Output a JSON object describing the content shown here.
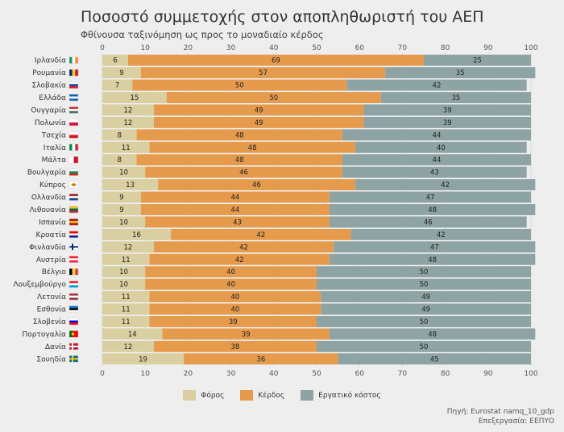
{
  "title": "Ποσοστό συμμετοχής στον αποπληθωριστή του ΑΕΠ",
  "subtitle": "Φθίνουσα ταξινόμηση ως προς το μοναδιαίο κέρδος",
  "source": {
    "line1": "Πηγή: Eurostat namq_10_gdp",
    "line2": "Επεξεργασία: ΕΕΠΥΟ"
  },
  "colors": {
    "tax": "#d9cfa0",
    "profit": "#e69b4c",
    "labour": "#8ea3a3"
  },
  "flag_icons": [
    {
      "country": "Ιρλανδία",
      "icon": "flag-ireland-icon",
      "colors": [
        "#169b62",
        "#ffffff",
        "#ff883e"
      ],
      "layout": "vertical"
    },
    {
      "country": "Ρουμανία",
      "icon": "flag-romania-icon",
      "colors": [
        "#002b7f",
        "#fcd116",
        "#ce1126"
      ],
      "layout": "vertical"
    },
    {
      "country": "Σλοβακία",
      "icon": "flag-slovakia-icon",
      "colors": [
        "#ffffff",
        "#0b4ea2",
        "#ee1c25"
      ],
      "layout": "horizontal"
    },
    {
      "country": "Ελλάδα",
      "icon": "flag-greece-icon",
      "colors": [
        "#0d5eaf",
        "#ffffff",
        "#0d5eaf"
      ],
      "layout": "horizontal"
    },
    {
      "country": "Ουγγαρία",
      "icon": "flag-hungary-icon",
      "colors": [
        "#ce2939",
        "#ffffff",
        "#477050"
      ],
      "layout": "horizontal"
    },
    {
      "country": "Πολωνία",
      "icon": "flag-poland-icon",
      "colors": [
        "#ffffff",
        "#dc143c"
      ],
      "layout": "horizontal"
    },
    {
      "country": "Τσεχία",
      "icon": "flag-czechia-icon",
      "colors": [
        "#ffffff",
        "#d7141a"
      ],
      "layout": "horizontal"
    },
    {
      "country": "Ιταλία",
      "icon": "flag-italy-icon",
      "colors": [
        "#009246",
        "#ffffff",
        "#ce2b37"
      ],
      "layout": "vertical"
    },
    {
      "country": "Μάλτα",
      "icon": "flag-malta-icon",
      "colors": [
        "#ffffff",
        "#cf142b"
      ],
      "layout": "vertical"
    },
    {
      "country": "Βουλγαρία",
      "icon": "flag-bulgaria-icon",
      "colors": [
        "#ffffff",
        "#00966e",
        "#d62612"
      ],
      "layout": "horizontal"
    },
    {
      "country": "Κύπρος",
      "icon": "flag-cyprus-icon",
      "colors": [
        "#ffffff",
        "#d57800"
      ],
      "layout": "emblem"
    },
    {
      "country": "Ολλανδία",
      "icon": "flag-netherlands-icon",
      "colors": [
        "#ae1c28",
        "#ffffff",
        "#21468b"
      ],
      "layout": "horizontal"
    },
    {
      "country": "Λιθουανία",
      "icon": "flag-lithuania-icon",
      "colors": [
        "#fdb913",
        "#006a44",
        "#c1272d"
      ],
      "layout": "horizontal"
    },
    {
      "country": "Ισπανία",
      "icon": "flag-spain-icon",
      "colors": [
        "#aa151b",
        "#f1bf00",
        "#aa151b"
      ],
      "layout": "horizontal"
    },
    {
      "country": "Κροατία",
      "icon": "flag-croatia-icon",
      "colors": [
        "#ff0000",
        "#ffffff",
        "#171796"
      ],
      "layout": "horizontal"
    },
    {
      "country": "Φινλανδία",
      "icon": "flag-finland-icon",
      "colors": [
        "#ffffff",
        "#002f6c"
      ],
      "layout": "cross"
    },
    {
      "country": "Αυστρία",
      "icon": "flag-austria-icon",
      "colors": [
        "#ed2939",
        "#ffffff",
        "#ed2939"
      ],
      "layout": "horizontal"
    },
    {
      "country": "Βέλγιο",
      "icon": "flag-belgium-icon",
      "colors": [
        "#000000",
        "#fdda24",
        "#ef3340"
      ],
      "layout": "vertical"
    },
    {
      "country": "Λουξεμβούργο",
      "icon": "flag-luxembourg-icon",
      "colors": [
        "#ed2939",
        "#ffffff",
        "#00a1de"
      ],
      "layout": "horizontal"
    },
    {
      "country": "Λετονία",
      "icon": "flag-latvia-icon",
      "colors": [
        "#9e3039",
        "#ffffff",
        "#9e3039"
      ],
      "layout": "horizontal"
    },
    {
      "country": "Εσθονία",
      "icon": "flag-estonia-icon",
      "colors": [
        "#0072ce",
        "#000000",
        "#ffffff"
      ],
      "layout": "horizontal"
    },
    {
      "country": "Σλοβενία",
      "icon": "flag-slovenia-icon",
      "colors": [
        "#ffffff",
        "#0000ff",
        "#ff0000"
      ],
      "layout": "horizontal"
    },
    {
      "country": "Πορτογαλία",
      "icon": "flag-portugal-icon",
      "colors": [
        "#006600",
        "#ff0000"
      ],
      "layout": "portugal"
    },
    {
      "country": "Δανία",
      "icon": "flag-denmark-icon",
      "colors": [
        "#c8102e",
        "#ffffff"
      ],
      "layout": "cross"
    },
    {
      "country": "Σουηδία",
      "icon": "flag-sweden-icon",
      "colors": [
        "#006aa7",
        "#fecc00"
      ],
      "layout": "cross"
    }
  ],
  "chart_data": {
    "type": "bar",
    "orientation": "horizontal",
    "stacked": true,
    "title": "Ποσοστό συμμετοχής στον αποπληθωριστή του ΑΕΠ",
    "subtitle": "Φθίνουσα ταξινόμηση ως προς το μοναδιαίο κέρδος",
    "xlim": [
      0,
      100
    ],
    "xticks": [
      0,
      10,
      20,
      30,
      40,
      50,
      60,
      70,
      80,
      90,
      100
    ],
    "grid": true,
    "legend_position": "bottom",
    "categories": [
      "Ιρλανδία",
      "Ρουμανία",
      "Σλοβακία",
      "Ελλάδα",
      "Ουγγαρία",
      "Πολωνία",
      "Τσεχία",
      "Ιταλία",
      "Μάλτα",
      "Βουλγαρία",
      "Κύπρος",
      "Ολλανδία",
      "Λιθουανία",
      "Ισπανία",
      "Κροατία",
      "Φινλανδία",
      "Αυστρία",
      "Βέλγιο",
      "Λουξεμβούργο",
      "Λετονία",
      "Εσθονία",
      "Σλοβενία",
      "Πορτογαλία",
      "Δανία",
      "Σουηδία"
    ],
    "series": [
      {
        "name": "Φόρος",
        "color": "#d9cfa0",
        "values": [
          6,
          9,
          7,
          15,
          12,
          12,
          8,
          11,
          8,
          10,
          13,
          9,
          9,
          10,
          16,
          12,
          11,
          10,
          10,
          11,
          11,
          11,
          14,
          12,
          19
        ]
      },
      {
        "name": "Κέρδος",
        "color": "#e69b4c",
        "values": [
          69,
          57,
          50,
          50,
          49,
          49,
          48,
          48,
          48,
          46,
          46,
          44,
          44,
          43,
          42,
          42,
          42,
          40,
          40,
          40,
          40,
          39,
          39,
          38,
          36
        ]
      },
      {
        "name": "Εργατικό κόστος",
        "color": "#8ea3a3",
        "values": [
          25,
          35,
          42,
          35,
          39,
          39,
          44,
          40,
          44,
          43,
          42,
          47,
          48,
          46,
          42,
          47,
          48,
          50,
          50,
          49,
          49,
          50,
          48,
          50,
          45
        ]
      }
    ]
  }
}
